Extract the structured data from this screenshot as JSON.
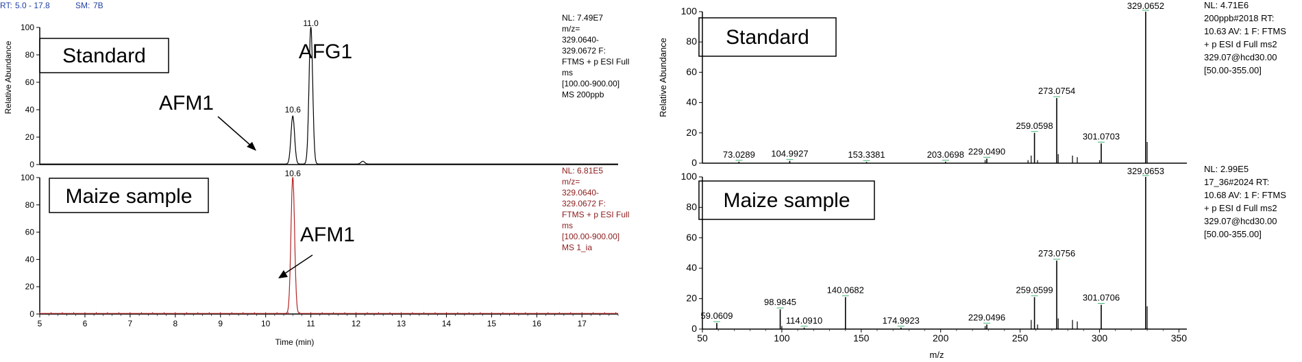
{
  "header": {
    "rt_label": "RT:",
    "rt_value": "5.0 - 17.8",
    "sm_label": "SM:",
    "sm_value": "7B"
  },
  "colors": {
    "standard_trace": "#000000",
    "sample_trace": "#b22222",
    "sample_info_text": "#8b1a1a",
    "header_text": "#1f3fa0",
    "green_marker": "#3cb371"
  },
  "chart_data": [
    {
      "type": "line",
      "panel": "left-top",
      "box_label": "Standard",
      "ylabel": "Relative Abundance",
      "ylim": [
        0,
        100
      ],
      "xlim": [
        5.0,
        17.8
      ],
      "yticks": [
        "0",
        "20",
        "40",
        "60",
        "80",
        "100"
      ],
      "peaks": [
        {
          "x": 10.6,
          "y": 35,
          "label": "10.6"
        },
        {
          "x": 11.0,
          "y": 100,
          "label": "11.0"
        },
        {
          "x": 12.15,
          "y": 2,
          "label": ""
        }
      ],
      "annotations": [
        "AFG1",
        "AFM1"
      ],
      "info": [
        "NL: 7.49E7",
        "m/z=",
        "329.0640-",
        "329.0672 F:",
        "FTMS + p ESI Full",
        "ms",
        "[100.00-900.00]",
        "MS 200ppb"
      ]
    },
    {
      "type": "line",
      "panel": "left-bottom",
      "box_label": "Maize sample",
      "xlabel": "Time (min)",
      "ylim": [
        0,
        100
      ],
      "xlim": [
        5.0,
        17.8
      ],
      "yticks": [
        "0",
        "20",
        "40",
        "60",
        "80",
        "100"
      ],
      "xticks": [
        "5",
        "6",
        "7",
        "8",
        "9",
        "10",
        "11",
        "12",
        "13",
        "14",
        "15",
        "16",
        "17"
      ],
      "peaks": [
        {
          "x": 10.6,
          "y": 100,
          "label": "10.6"
        }
      ],
      "annotations": [
        "AFM1"
      ],
      "info": [
        "NL: 6.81E5",
        "m/z=",
        "329.0640-",
        "329.0672 F:",
        "FTMS + p ESI Full",
        "ms",
        "[100.00-900.00]",
        "MS 1_ia"
      ]
    },
    {
      "type": "bar",
      "panel": "right-top",
      "box_label": "Standard",
      "ylabel": "Relative Abundance",
      "ylim": [
        0,
        100
      ],
      "xlim": [
        50,
        355
      ],
      "yticks": [
        "0",
        "20",
        "40",
        "60",
        "80",
        "100"
      ],
      "peaks": [
        {
          "x": 73.0289,
          "y": 1,
          "label": "73.0289"
        },
        {
          "x": 104.9927,
          "y": 1.5,
          "label": "104.9927"
        },
        {
          "x": 153.3381,
          "y": 0.8,
          "label": "153.3381"
        },
        {
          "x": 203.0698,
          "y": 1,
          "label": "203.0698"
        },
        {
          "x": 229.049,
          "y": 3,
          "label": "229.0490"
        },
        {
          "x": 259.0598,
          "y": 20,
          "label": "259.0598"
        },
        {
          "x": 273.0754,
          "y": 43,
          "label": "273.0754"
        },
        {
          "x": 301.0703,
          "y": 13,
          "label": "301.0703"
        },
        {
          "x": 329.0652,
          "y": 100,
          "label": "329.0652"
        }
      ],
      "minor_peaks": [
        {
          "x": 255,
          "y": 2
        },
        {
          "x": 257,
          "y": 5
        },
        {
          "x": 261,
          "y": 2
        },
        {
          "x": 274,
          "y": 6
        },
        {
          "x": 283,
          "y": 5
        },
        {
          "x": 286,
          "y": 4
        },
        {
          "x": 300,
          "y": 2
        },
        {
          "x": 330,
          "y": 14
        },
        {
          "x": 228,
          "y": 2
        }
      ],
      "info": [
        "NL: 4.71E6",
        "200ppb#2018  RT:",
        "10.63  AV: 1 F: FTMS",
        "+ p ESI d Full ms2",
        "329.07@hcd30.00",
        "[50.00-355.00]"
      ]
    },
    {
      "type": "bar",
      "panel": "right-bottom",
      "box_label": "Maize sample",
      "xlabel": "m/z",
      "ylim": [
        0,
        100
      ],
      "xlim": [
        50,
        355
      ],
      "yticks": [
        "0",
        "20",
        "40",
        "60",
        "80",
        "100"
      ],
      "xticks": [
        "50",
        "100",
        "150",
        "200",
        "250",
        "300",
        "350"
      ],
      "peaks": [
        {
          "x": 59.0609,
          "y": 4,
          "label": "59.0609"
        },
        {
          "x": 98.9845,
          "y": 13,
          "label": "98.9845"
        },
        {
          "x": 114.091,
          "y": 1,
          "label": "114.0910"
        },
        {
          "x": 140.0682,
          "y": 21,
          "label": "140.0682"
        },
        {
          "x": 174.9923,
          "y": 1,
          "label": "174.9923"
        },
        {
          "x": 229.0496,
          "y": 3,
          "label": "229.0496"
        },
        {
          "x": 259.0599,
          "y": 21,
          "label": "259.0599"
        },
        {
          "x": 273.0756,
          "y": 45,
          "label": "273.0756"
        },
        {
          "x": 301.0706,
          "y": 16,
          "label": "301.0706"
        },
        {
          "x": 329.0653,
          "y": 100,
          "label": "329.0653"
        }
      ],
      "minor_peaks": [
        {
          "x": 257,
          "y": 6
        },
        {
          "x": 261,
          "y": 3
        },
        {
          "x": 274,
          "y": 7
        },
        {
          "x": 283,
          "y": 6
        },
        {
          "x": 286,
          "y": 5
        },
        {
          "x": 330,
          "y": 15
        },
        {
          "x": 228,
          "y": 2
        },
        {
          "x": 100,
          "y": 2
        }
      ],
      "info": [
        "NL: 2.99E5",
        "17_36#2024  RT:",
        "10.68  AV: 1 F: FTMS",
        "+ p ESI d Full ms2",
        "329.07@hcd30.00",
        "[50.00-355.00]"
      ]
    }
  ]
}
